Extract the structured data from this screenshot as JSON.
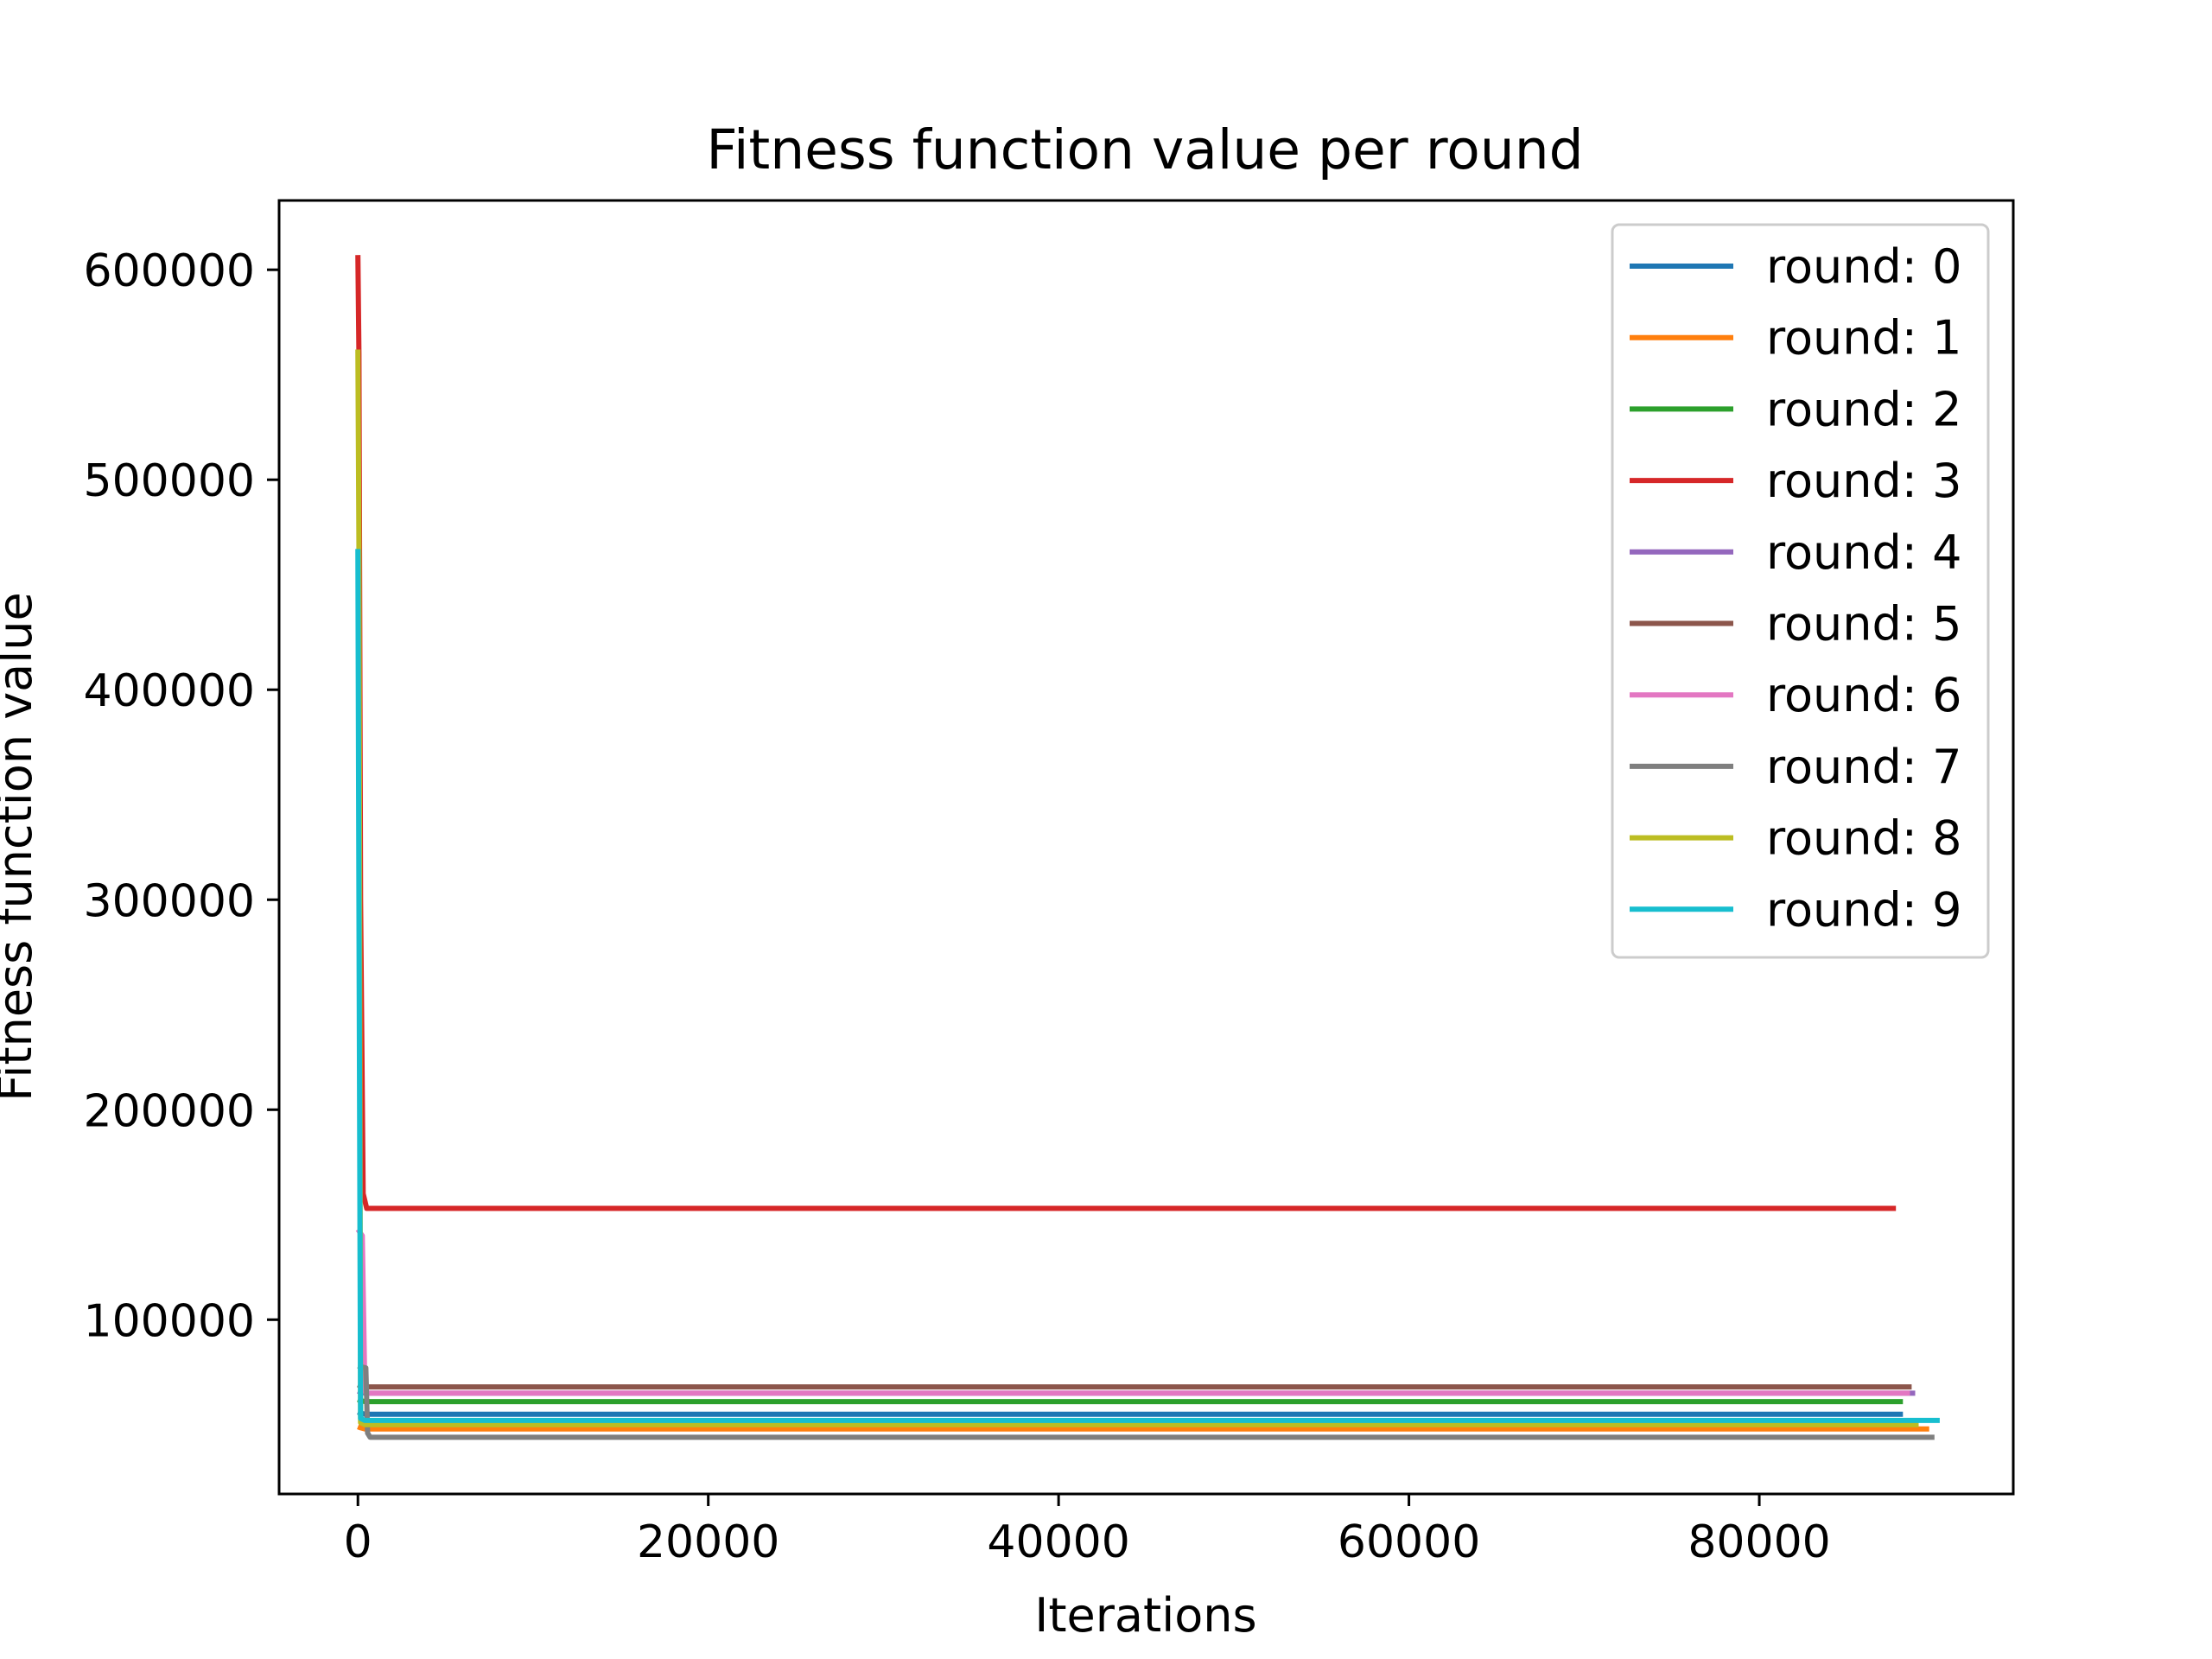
{
  "chart_data": {
    "type": "line",
    "title": "Fitness function value per round",
    "xlabel": "Iterations",
    "ylabel": "Fitness function value",
    "xlim": [
      -4500,
      94500
    ],
    "ylim": [
      17000,
      633000
    ],
    "xticks": [
      0,
      20000,
      40000,
      60000,
      80000
    ],
    "yticks": [
      100000,
      200000,
      300000,
      400000,
      500000,
      600000
    ],
    "grid": false,
    "legend_position": "top-right",
    "series": [
      {
        "name": "round: 0",
        "color": "#1f77b4",
        "x": [
          0,
          150,
          400,
          88200
        ],
        "y": [
          56000,
          55500,
          55000,
          55000
        ]
      },
      {
        "name": "round: 1",
        "color": "#ff7f0e",
        "x": [
          0,
          150,
          400,
          89700
        ],
        "y": [
          49000,
          48500,
          48000,
          48000
        ]
      },
      {
        "name": "round: 2",
        "color": "#2ca02c",
        "x": [
          0,
          150,
          400,
          88200
        ],
        "y": [
          62000,
          61500,
          61000,
          61000
        ]
      },
      {
        "name": "round: 3",
        "color": "#d62728",
        "x": [
          0,
          60,
          150,
          300,
          500,
          87800
        ],
        "y": [
          607000,
          560000,
          300000,
          160000,
          153000,
          153000
        ]
      },
      {
        "name": "round: 4",
        "color": "#9467bd",
        "x": [
          0,
          150,
          400,
          88900
        ],
        "y": [
          66000,
          65500,
          65000,
          65000
        ]
      },
      {
        "name": "round: 5",
        "color": "#8c564b",
        "x": [
          0,
          150,
          400,
          88700
        ],
        "y": [
          69000,
          68500,
          68000,
          68000
        ]
      },
      {
        "name": "round: 6",
        "color": "#e377c2",
        "x": [
          0,
          250,
          400,
          500,
          88600
        ],
        "y": [
          143000,
          140000,
          66000,
          65000,
          65000
        ]
      },
      {
        "name": "round: 7",
        "color": "#7f7f7f",
        "x": [
          0,
          450,
          550,
          700,
          90000
        ],
        "y": [
          78000,
          77000,
          46000,
          44000,
          44000
        ]
      },
      {
        "name": "round: 8",
        "color": "#bcbd22",
        "x": [
          0,
          60,
          150,
          400,
          89100
        ],
        "y": [
          562000,
          470000,
          51000,
          50000,
          50000
        ]
      },
      {
        "name": "round: 9",
        "color": "#17becf",
        "x": [
          0,
          60,
          150,
          400,
          90300
        ],
        "y": [
          467000,
          300000,
          53000,
          52000,
          52000
        ]
      }
    ]
  }
}
